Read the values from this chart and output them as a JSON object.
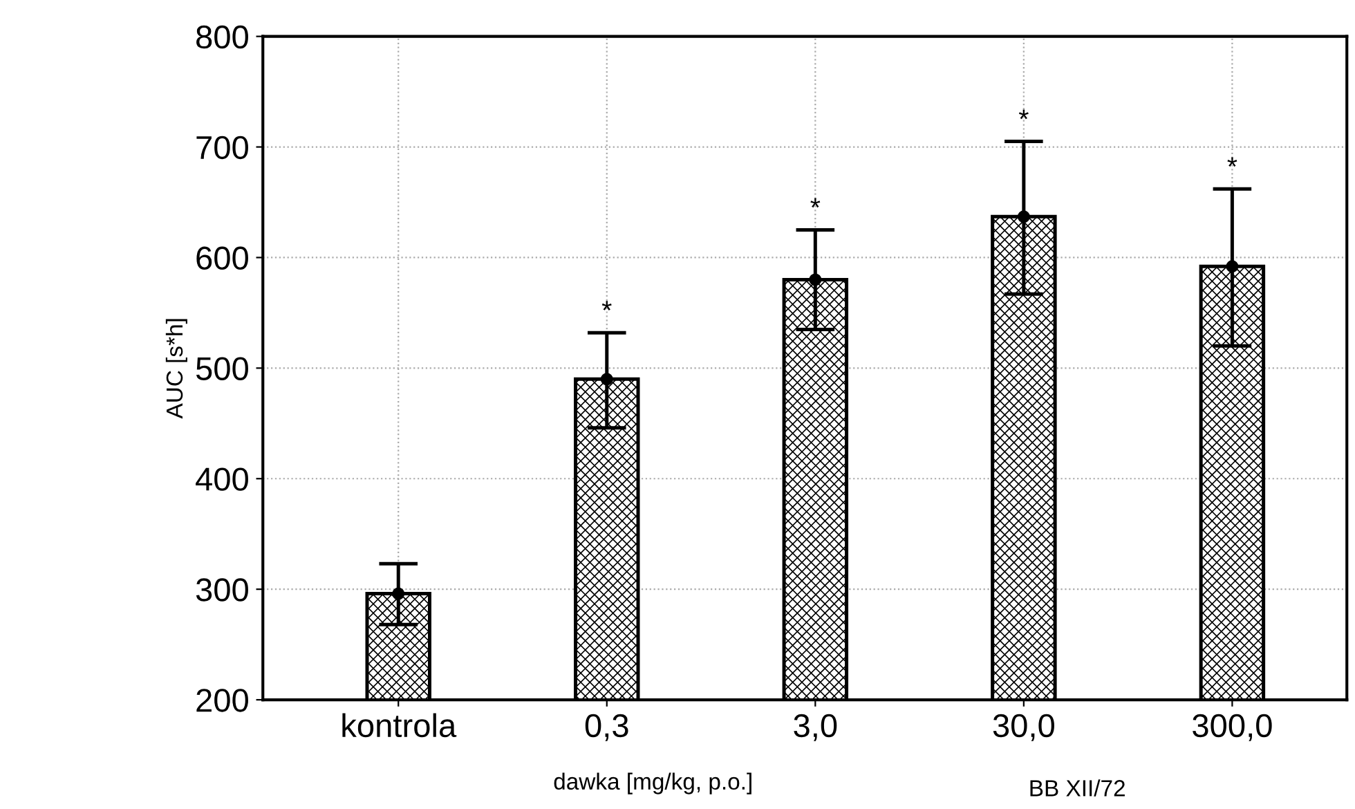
{
  "chart_data": {
    "type": "bar",
    "ylabel": "AUC [s*h]",
    "xlabel": "dawka [mg/kg, p.o.]",
    "categories": [
      "kontrola",
      "0,3",
      "3,0",
      "30,0",
      "300,0"
    ],
    "series": [
      {
        "color": "#000000",
        "values": [
          296,
          490,
          580,
          637,
          592
        ]
      },
      {
        "type": "scatter",
        "color": "#000000",
        "marker": "circle",
        "x": [
          "kontrola",
          "0,3",
          "3,0",
          "30,0",
          "300,0"
        ],
        "values": [
          296,
          490,
          580,
          637,
          592
        ],
        "errors": [
          [
            268,
            323
          ],
          [
            446,
            532
          ],
          [
            535,
            625
          ],
          [
            567,
            705
          ],
          [
            520,
            662
          ]
        ]
      }
    ],
    "ylim": [
      200,
      800
    ],
    "yticks": [
      200,
      300,
      400,
      500,
      600,
      700,
      800
    ],
    "grid": true,
    "annotations": [
      "*",
      "*",
      "*",
      "*",
      "BB XII/72"
    ]
  }
}
